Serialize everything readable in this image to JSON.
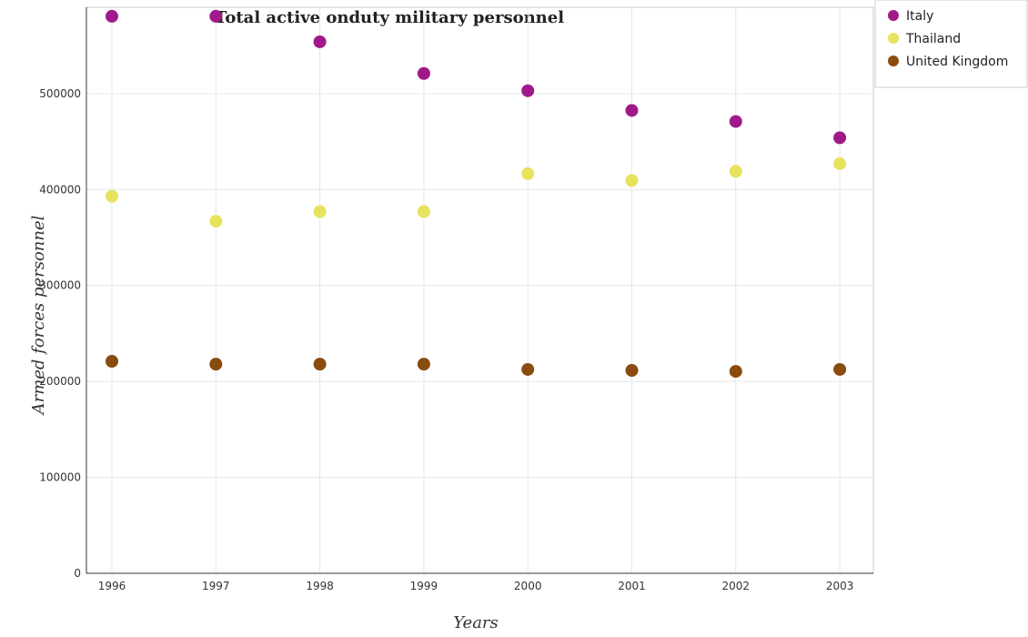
{
  "chart_data": {
    "type": "scatter",
    "title": "Total active onduty military personnel",
    "xlabel": "Years",
    "ylabel": "Armed forces personnel",
    "categories": [
      "1996",
      "1997",
      "1998",
      "1999",
      "2000",
      "2001",
      "2002",
      "2003"
    ],
    "ylim": [
      0,
      590000
    ],
    "yticks": [
      0,
      100000,
      200000,
      300000,
      400000,
      500000
    ],
    "ytick_labels": [
      "0",
      "100000",
      "200000",
      "300000",
      "400000",
      "500000"
    ],
    "grid": true,
    "legend_position": "top-right",
    "series": [
      {
        "name": "Italy",
        "color": "#a0198a",
        "values": [
          580600,
          580600,
          554000,
          521000,
          503000,
          482500,
          471000,
          454000
        ]
      },
      {
        "name": "Thailand",
        "color": "#e8e25c",
        "values": [
          393000,
          367000,
          377000,
          377000,
          416500,
          409500,
          419000,
          427000
        ]
      },
      {
        "name": "United Kingdom",
        "color": "#8a4b0f",
        "values": [
          221000,
          218000,
          218000,
          218000,
          212500,
          211500,
          210500,
          212500
        ]
      }
    ]
  }
}
